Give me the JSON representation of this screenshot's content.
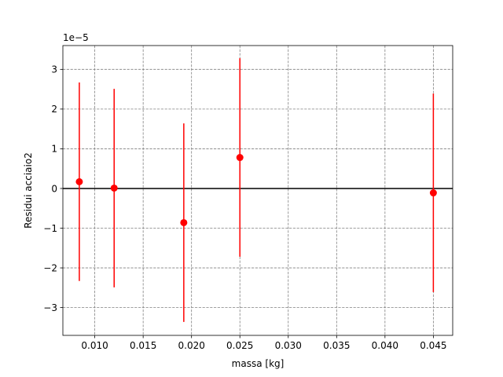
{
  "chart_data": {
    "type": "scatter",
    "title": "",
    "xlabel": "massa [kg]",
    "ylabel": "Residui acciaio2",
    "y_offset_text": "1e−5",
    "y_scale_factor": 1e-05,
    "xlim": [
      0.0067,
      0.047
    ],
    "ylim": [
      -3.7,
      3.6
    ],
    "x_ticks": [
      0.01,
      0.015,
      0.02,
      0.025,
      0.03,
      0.035,
      0.04,
      0.045
    ],
    "x_tick_labels": [
      "0.010",
      "0.015",
      "0.020",
      "0.025",
      "0.030",
      "0.035",
      "0.040",
      "0.045"
    ],
    "y_ticks": [
      -3,
      -2,
      -1,
      0,
      1,
      2,
      3
    ],
    "y_tick_labels": [
      "−3",
      "−2",
      "−1",
      "0",
      "1",
      "2",
      "3"
    ],
    "grid": true,
    "zero_line": 0,
    "series": [
      {
        "color": "#ff0000",
        "points": [
          {
            "x": 0.0084,
            "y": 0.17,
            "err": 2.5
          },
          {
            "x": 0.012,
            "y": 0.01,
            "err": 2.5
          },
          {
            "x": 0.0192,
            "y": -0.86,
            "err": 2.5
          },
          {
            "x": 0.025,
            "y": 0.78,
            "err": 2.5
          },
          {
            "x": 0.045,
            "y": -0.11,
            "err": 2.5
          }
        ]
      }
    ]
  }
}
